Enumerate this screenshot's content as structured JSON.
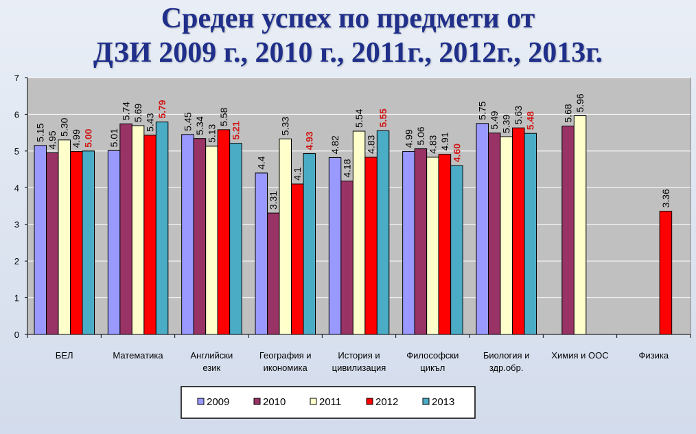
{
  "title_line1": "Среден успех по предмети от",
  "title_line2": "ДЗИ 2009 г., 2010 г., 2011г., 2012г., 2013г.",
  "chart_data": {
    "type": "bar",
    "title": "Среден успех по предмети от ДЗИ 2009 г., 2010 г., 2011г., 2012г., 2013г.",
    "ylim": [
      0,
      7
    ],
    "yticks": [
      0,
      1,
      2,
      3,
      4,
      5,
      6,
      7
    ],
    "grid": true,
    "legend_position": "bottom",
    "categories": [
      [
        "БЕЛ"
      ],
      [
        "Математика"
      ],
      [
        "Английски",
        "език"
      ],
      [
        "География и",
        "икономика"
      ],
      [
        "История и",
        "цивилизация"
      ],
      [
        "Философски",
        "цикъл"
      ],
      [
        "Биология и",
        "здр.обр."
      ],
      [
        "Химия и ООС"
      ],
      [
        "Физика"
      ]
    ],
    "series": [
      {
        "name": "2009",
        "color": "#9999ff",
        "highlight": false,
        "values": [
          5.15,
          5.01,
          5.45,
          4.4,
          4.82,
          4.99,
          5.75,
          null,
          null
        ],
        "labels": [
          "5.15",
          "5.01",
          "5.45",
          "4.4",
          "4.82",
          "4.99",
          "5.75",
          "",
          ""
        ]
      },
      {
        "name": "2010",
        "color": "#993366",
        "highlight": false,
        "values": [
          4.95,
          5.74,
          5.34,
          3.31,
          4.18,
          5.06,
          5.49,
          5.68,
          null
        ],
        "labels": [
          "4.95",
          "5.74",
          "5.34",
          "3.31",
          "4.18",
          "5.06",
          "5.49",
          "5.68",
          ""
        ]
      },
      {
        "name": "2011",
        "color": "#ffffcc",
        "highlight": false,
        "values": [
          5.3,
          5.69,
          5.13,
          5.33,
          5.54,
          4.83,
          5.39,
          5.96,
          null
        ],
        "labels": [
          "5.30",
          "5.69",
          "5.13",
          "5.33",
          "5.54",
          "4.83",
          "5.39",
          "5.96",
          ""
        ]
      },
      {
        "name": "2012",
        "color": "#ff0000",
        "highlight": false,
        "values": [
          4.99,
          5.43,
          5.58,
          4.1,
          4.83,
          4.91,
          5.63,
          null,
          3.36
        ],
        "labels": [
          "4.99",
          "5.43",
          "5.58",
          "4.1",
          "4.83",
          "4.91",
          "5.63",
          "",
          "3.36"
        ]
      },
      {
        "name": "2013",
        "color": "#4bacc6",
        "highlight": true,
        "values": [
          5.0,
          5.79,
          5.21,
          4.93,
          5.55,
          4.6,
          5.48,
          null,
          null
        ],
        "labels": [
          "5.00",
          "5.79",
          "5.21",
          "4.93",
          "5.55",
          "4.60",
          "5.48",
          "",
          ""
        ]
      }
    ]
  }
}
